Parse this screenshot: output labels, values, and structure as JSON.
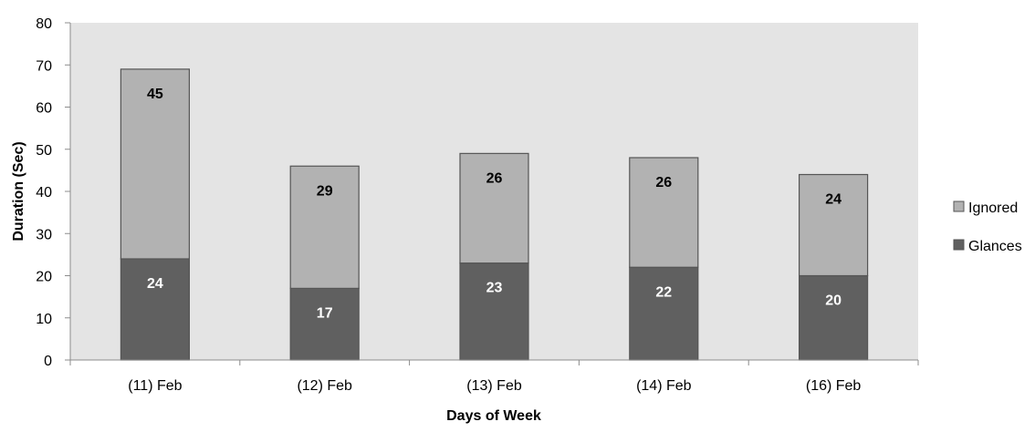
{
  "chart_data": {
    "type": "bar",
    "stacked": true,
    "categories": [
      "(11) Feb",
      "(12) Feb",
      "(13) Feb",
      "(14) Feb",
      "(16) Feb"
    ],
    "series": [
      {
        "name": "Glances",
        "values": [
          24,
          17,
          23,
          22,
          20
        ],
        "color": "#606060",
        "label_color": "#ffffff"
      },
      {
        "name": "Ignored",
        "values": [
          45,
          29,
          26,
          26,
          24
        ],
        "color": "#b2b2b2",
        "label_color": "#000000"
      }
    ],
    "xlabel": "Days of Week",
    "ylabel": "Duration (Sec)",
    "ylim": [
      0,
      80
    ],
    "yticks": [
      0,
      10,
      20,
      30,
      40,
      50,
      60,
      70,
      80
    ],
    "plot_background": "#e4e4e4",
    "grid": false,
    "legend_position": "right",
    "legend_order": [
      "Ignored",
      "Glances"
    ]
  }
}
